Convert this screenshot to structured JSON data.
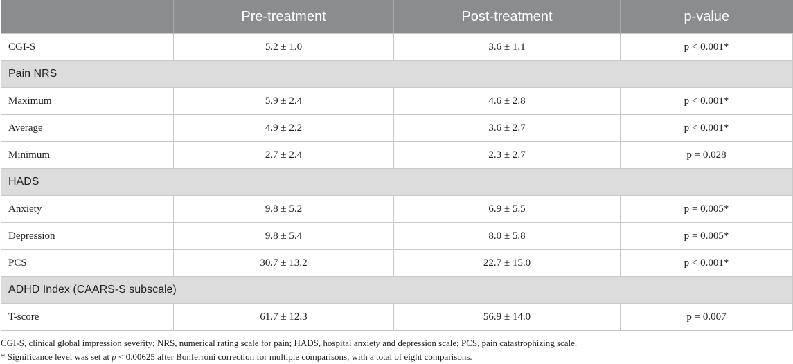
{
  "table": {
    "headers": [
      "",
      "Pre-treatment",
      "Post-treatment",
      "p-value"
    ],
    "rows": [
      {
        "type": "data",
        "label": "CGI-S",
        "pre": "5.2 ± 1.0",
        "post": "3.6 ± 1.1",
        "p": "p < 0.001*"
      },
      {
        "type": "section",
        "label": "Pain NRS"
      },
      {
        "type": "data",
        "label": "Maximum",
        "pre": "5.9 ± 2.4",
        "post": "4.6 ± 2.8",
        "p": "p < 0.001*"
      },
      {
        "type": "data",
        "label": "Average",
        "pre": "4.9 ± 2.2",
        "post": "3.6 ± 2.7",
        "p": "p < 0.001*"
      },
      {
        "type": "data",
        "label": "Minimum",
        "pre": "2.7 ± 2.4",
        "post": "2.3 ± 2.7",
        "p": "p = 0.028"
      },
      {
        "type": "section",
        "label": "HADS"
      },
      {
        "type": "data",
        "label": "Anxiety",
        "pre": "9.8 ± 5.2",
        "post": "6.9 ± 5.5",
        "p": "p = 0.005*"
      },
      {
        "type": "data",
        "label": "Depression",
        "pre": "9.8 ± 5.4",
        "post": "8.0 ± 5.8",
        "p": "p = 0.005*"
      },
      {
        "type": "data",
        "label": "PCS",
        "pre": "30.7 ± 13.2",
        "post": "22.7 ± 15.0",
        "p": "p < 0.001*"
      },
      {
        "type": "section",
        "label": "ADHD Index (CAARS-S subscale)"
      },
      {
        "type": "data",
        "label": "T-score",
        "pre": "61.7 ± 12.3",
        "post": "56.9 ± 14.0",
        "p": "p = 0.007"
      }
    ]
  },
  "footnotes": {
    "abbreviations": "CGI-S, clinical global impression severity; NRS, numerical rating scale for pain; HADS, hospital anxiety and depression scale; PCS, pain catastrophizing scale.",
    "significance_prefix": "* Significance level was set at ",
    "significance_p": "p",
    "significance_suffix": " < 0.00625 after Bonferroni correction for multiple comparisons, with a total of eight comparisons."
  },
  "colors": {
    "header_bg": "#8a8c8d",
    "section_bg": "#dcdcdc"
  }
}
